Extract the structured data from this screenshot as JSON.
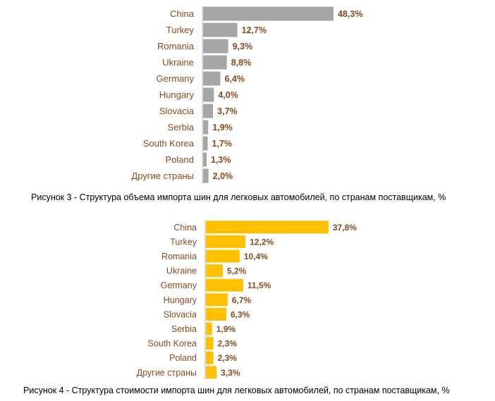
{
  "chart_data": [
    {
      "type": "bar",
      "orientation": "horizontal",
      "categories": [
        "China",
        "Turkey",
        "Romania",
        "Ukraine",
        "Germany",
        "Hungary",
        "Slovacia",
        "Serbia",
        "South Korea",
        "Poland",
        "Другие страны"
      ],
      "values": [
        48.3,
        12.7,
        9.3,
        8.8,
        6.4,
        4.0,
        3.7,
        1.9,
        1.7,
        1.3,
        2.0
      ],
      "value_labels": [
        "48,3%",
        "12,7%",
        "9,3%",
        "8,8%",
        "6,4%",
        "4,0%",
        "3,7%",
        "1,9%",
        "1,7%",
        "1,3%",
        "2,0%"
      ],
      "title": "Рисунок 3 - Структура объема импорта шин для легковых автомобилей, по странам поставщикам, %",
      "color": "#a6a6a6",
      "grid": false,
      "legend": "none"
    },
    {
      "type": "bar",
      "orientation": "horizontal",
      "categories": [
        "China",
        "Turkey",
        "Romania",
        "Ukraine",
        "Germany",
        "Hungary",
        "Slovacia",
        "Serbia",
        "South Korea",
        "Poland",
        "Другие страны"
      ],
      "values": [
        37.8,
        12.2,
        10.4,
        5.2,
        11.5,
        6.7,
        6.3,
        1.9,
        2.3,
        2.3,
        3.3
      ],
      "value_labels": [
        "37,8%",
        "12,2%",
        "10,4%",
        "5,2%",
        "11,5%",
        "6,7%",
        "6,3%",
        "1,9%",
        "2,3%",
        "2,3%",
        "3,3%"
      ],
      "title": "Рисунок 4 - Структура стоимости импорта шин для легковых автомобилей, по странам поставщикам, %",
      "color": "#ffc000",
      "grid": false,
      "legend": "none"
    }
  ]
}
